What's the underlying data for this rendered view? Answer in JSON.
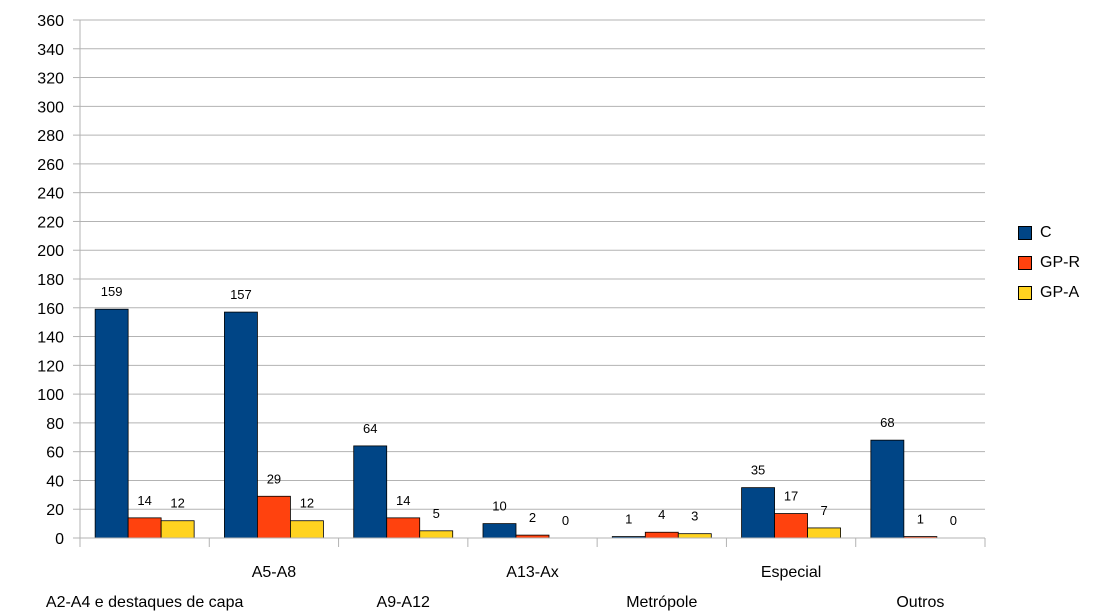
{
  "chart_data": {
    "type": "bar",
    "categories": [
      "A2-A4 e destaques de capa",
      "A5-A8",
      "A9-A12",
      "A13-Ax",
      "Metrópole",
      "Especial",
      "Outros"
    ],
    "series": [
      {
        "name": "C",
        "color": "#004586",
        "values": [
          159,
          157,
          64,
          10,
          1,
          35,
          68
        ]
      },
      {
        "name": "GP-R",
        "color": "#ff420e",
        "values": [
          14,
          29,
          14,
          2,
          4,
          17,
          1
        ]
      },
      {
        "name": "GP-A",
        "color": "#ffd320",
        "values": [
          12,
          12,
          5,
          0,
          3,
          7,
          0
        ]
      }
    ],
    "ylim": [
      0,
      360
    ],
    "ytick_step": 20,
    "grid": true,
    "legend": "right",
    "data_labels": true,
    "title": "",
    "xlabel": "",
    "ylabel": ""
  }
}
